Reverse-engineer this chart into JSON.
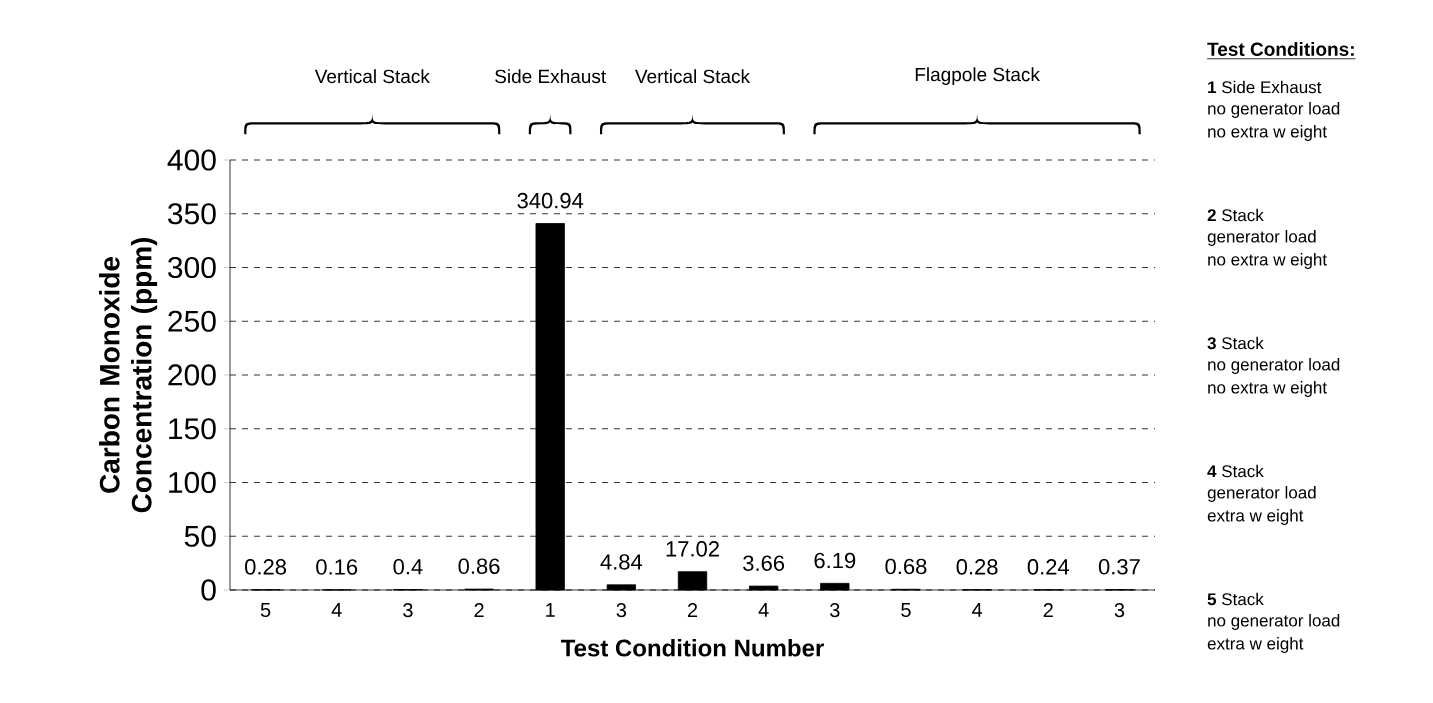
{
  "chart_data": {
    "type": "bar",
    "categories": [
      "5",
      "4",
      "3",
      "2",
      "1",
      "3",
      "2",
      "4",
      "3",
      "5",
      "4",
      "2",
      "3"
    ],
    "values": [
      0.28,
      0.16,
      0.4,
      0.86,
      340.94,
      4.84,
      17.02,
      3.66,
      6.19,
      0.68,
      0.28,
      0.24,
      0.37
    ],
    "color": "#000000",
    "data_labels": true,
    "xlabel": "Test Condition Number",
    "ylabel": "Carbon Monoxide Concentration (ppm)",
    "ylim": [
      0,
      400
    ],
    "yticks": [
      0,
      50,
      100,
      150,
      200,
      250,
      300,
      350,
      400
    ],
    "grid": "y",
    "annotations": [
      "Vertical Stack",
      "Side Exhaust",
      "Vertical Stack",
      "Flagpole Stack",
      "Test Conditions:",
      "**1** Side Exhaust",
      "no generator load",
      "no extra w eight",
      "**2** Stack",
      "generator load",
      "no extra w eight",
      "**3** Stack",
      "no generator load",
      "no extra w eight",
      "**4** Stack",
      "generator load",
      "extra w eight",
      "**5** Stack",
      "no generator load",
      "extra w eight"
    ]
  }
}
